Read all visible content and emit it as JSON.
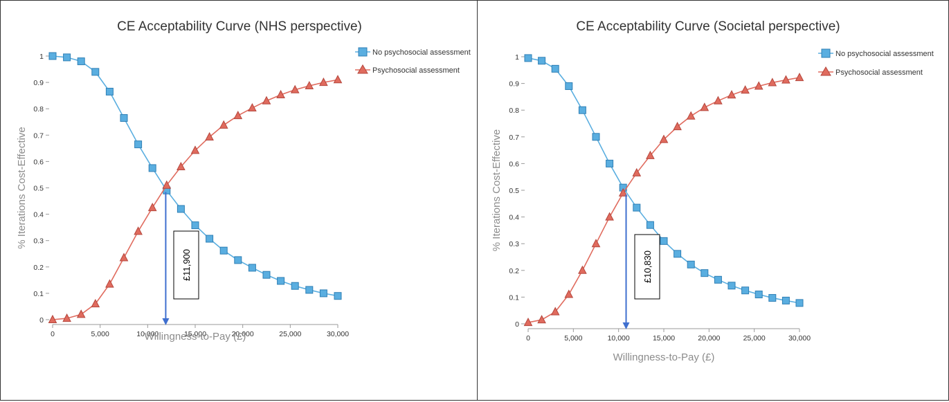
{
  "colors": {
    "no_assessment": "#5aaee0",
    "no_assessment_stroke": "#2f7fb5",
    "assessment": "#e06b5e",
    "assessment_stroke": "#b4463c",
    "arrow": "#3f6fcf"
  },
  "chart_data": [
    {
      "type": "line",
      "title": "CE Acceptability Curve (NHS perspective)",
      "xlabel": "Willingness-to-Pay (£)",
      "ylabel": "% Iterations Cost-Effective",
      "xlim": [
        0,
        30000
      ],
      "ylim": [
        0,
        1
      ],
      "xticks": [
        "0",
        "5,000",
        "10,000",
        "15,000",
        "20,000",
        "25,000",
        "30,000"
      ],
      "yticks": [
        "0",
        "0.1",
        "0.2",
        "0.3",
        "0.4",
        "0.5",
        "0.6",
        "0.7",
        "0.8",
        "0.9",
        "1"
      ],
      "legend_position": "top-right",
      "x": [
        0,
        1500,
        3000,
        4500,
        6000,
        7500,
        9000,
        10500,
        12000,
        13500,
        15000,
        16500,
        18000,
        19500,
        21000,
        22500,
        24000,
        25500,
        27000,
        28500,
        30000
      ],
      "series": [
        {
          "name": "No psychosocial assessment",
          "marker": "square",
          "values": [
            1.0,
            0.995,
            0.98,
            0.94,
            0.865,
            0.765,
            0.665,
            0.575,
            0.49,
            0.42,
            0.358,
            0.307,
            0.262,
            0.226,
            0.197,
            0.17,
            0.147,
            0.128,
            0.113,
            0.1,
            0.09
          ]
        },
        {
          "name": "Psychosocial assessment",
          "marker": "triangle",
          "values": [
            0.0,
            0.005,
            0.02,
            0.06,
            0.135,
            0.235,
            0.335,
            0.425,
            0.51,
            0.58,
            0.642,
            0.693,
            0.738,
            0.774,
            0.803,
            0.83,
            0.853,
            0.872,
            0.887,
            0.9,
            0.91
          ]
        }
      ],
      "annotation": {
        "text": "£11,900",
        "x": 11900
      }
    },
    {
      "type": "line",
      "title": "CE Acceptability Curve (Societal perspective)",
      "xlabel": "Willingness-to-Pay (£)",
      "ylabel": "% Iterations Cost-Effective",
      "xlim": [
        0,
        30000
      ],
      "ylim": [
        0,
        1
      ],
      "xticks": [
        "0",
        "5,000",
        "10,000",
        "15,000",
        "20,000",
        "25,000",
        "30,000"
      ],
      "yticks": [
        "0",
        "0.1",
        "0.2",
        "0.3",
        "0.4",
        "0.5",
        "0.6",
        "0.7",
        "0.8",
        "0.9",
        "1"
      ],
      "legend_position": "top-right",
      "x": [
        0,
        1500,
        3000,
        4500,
        6000,
        7500,
        9000,
        10500,
        12000,
        13500,
        15000,
        16500,
        18000,
        19500,
        21000,
        22500,
        24000,
        25500,
        27000,
        28500,
        30000
      ],
      "series": [
        {
          "name": "No psychosocial assessment",
          "marker": "square",
          "values": [
            0.995,
            0.985,
            0.955,
            0.89,
            0.8,
            0.7,
            0.6,
            0.51,
            0.435,
            0.37,
            0.31,
            0.262,
            0.222,
            0.19,
            0.165,
            0.143,
            0.125,
            0.11,
            0.097,
            0.087,
            0.078
          ]
        },
        {
          "name": "Psychosocial assessment",
          "marker": "triangle",
          "values": [
            0.005,
            0.015,
            0.045,
            0.11,
            0.2,
            0.3,
            0.4,
            0.49,
            0.565,
            0.63,
            0.69,
            0.738,
            0.778,
            0.81,
            0.835,
            0.857,
            0.875,
            0.89,
            0.903,
            0.913,
            0.922
          ]
        }
      ],
      "annotation": {
        "text": "£10,830",
        "x": 10830
      }
    }
  ]
}
